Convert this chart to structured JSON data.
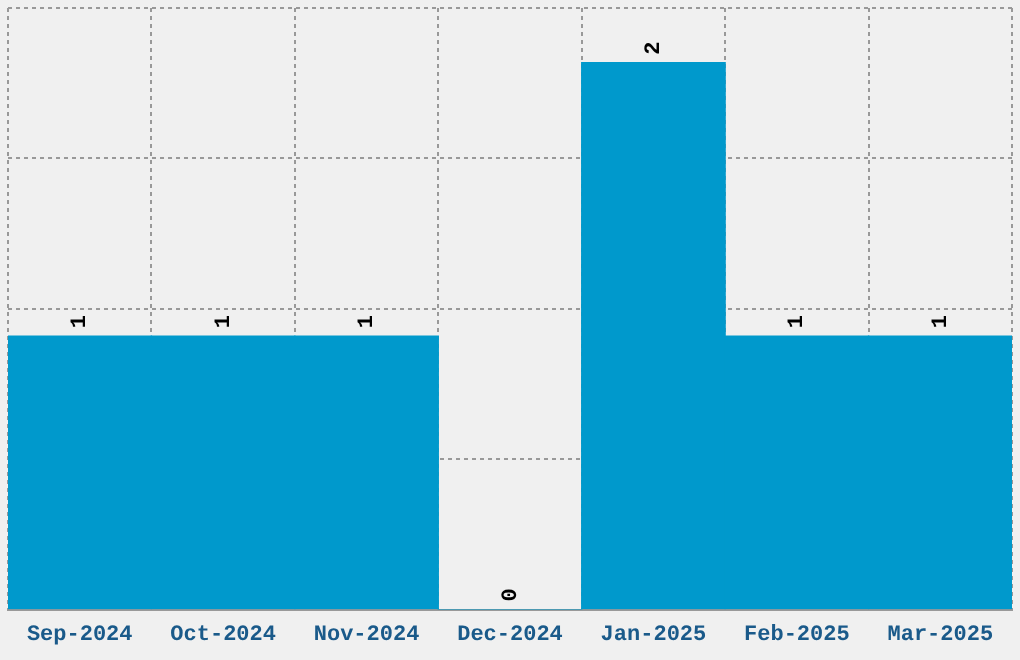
{
  "chart_data": {
    "type": "bar",
    "categories": [
      "Sep-2024",
      "Oct-2024",
      "Nov-2024",
      "Dec-2024",
      "Jan-2025",
      "Feb-2025",
      "Mar-2025"
    ],
    "values": [
      1,
      1,
      1,
      0,
      2,
      1,
      1
    ],
    "color": "#0099cc",
    "data_labels": true,
    "grid": true,
    "legend": false,
    "tick_labels": "x",
    "ylim": [
      0,
      2.2
    ],
    "yticks": [
      {
        "value": 0,
        "label": null
      },
      {
        "value": 0.55,
        "label": null
      },
      {
        "value": 1.1,
        "label": null
      },
      {
        "value": 1.65,
        "label": null
      },
      {
        "value": 2.2,
        "label": null
      }
    ]
  }
}
